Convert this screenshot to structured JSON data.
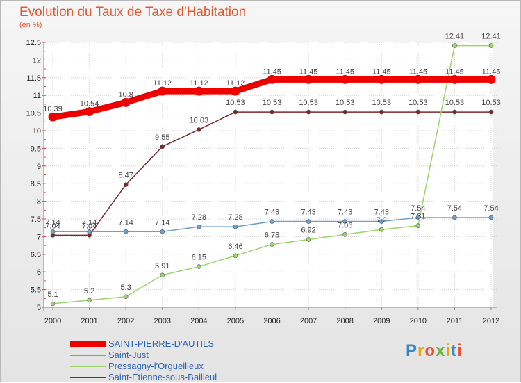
{
  "chart_data": {
    "type": "line",
    "title": "Evolution du Taux de Taxe d'Habitation",
    "ylabel": "(en %)",
    "xlabel": "",
    "x": [
      "2000",
      "2001",
      "2002",
      "2003",
      "2004",
      "2005",
      "2006",
      "2007",
      "2008",
      "2009",
      "2010",
      "2011",
      "2012"
    ],
    "ylim": [
      5,
      12.5
    ],
    "yticks": [
      "5",
      "5.5",
      "6",
      "6.5",
      "7",
      "7.5",
      "8",
      "8.5",
      "9",
      "9.5",
      "10",
      "10.5",
      "11",
      "11.5",
      "12",
      "12.5"
    ],
    "series": [
      {
        "name": "SAINT-PIERRE-D'AUTILS",
        "color": "#ee0000",
        "values": [
          10.39,
          10.54,
          10.8,
          11.12,
          11.12,
          11.12,
          11.45,
          11.45,
          11.45,
          11.45,
          11.45,
          11.45,
          11.45
        ],
        "labels": [
          "10.39",
          "10.54",
          "10.8",
          "11.12",
          "11.12",
          "11.12",
          "11.45",
          "11.45",
          "11.45",
          "11.45",
          "11.45",
          "11.45",
          "11.45"
        ]
      },
      {
        "name": "Saint-Just",
        "color": "#6aa0cf",
        "values": [
          7.14,
          7.14,
          7.14,
          7.14,
          7.28,
          7.28,
          7.43,
          7.43,
          7.43,
          7.43,
          7.54,
          7.54,
          7.54
        ],
        "labels": [
          "7.14",
          "7.14",
          "7.14",
          "7.14",
          "7.28",
          "7.28",
          "7.43",
          "7.43",
          "7.43",
          "7.43",
          "7.54",
          "7.54",
          "7.54"
        ]
      },
      {
        "name": "Pressagny-l'Orgueilleux",
        "color": "#9ad46a",
        "values": [
          5.1,
          5.2,
          5.3,
          5.91,
          6.15,
          6.46,
          6.78,
          6.92,
          7.06,
          7.2,
          7.31,
          12.41,
          12.41
        ],
        "labels": [
          "5.1",
          "5.2",
          "5.3",
          "5.91",
          "6.15",
          "6.46",
          "6.78",
          "6.92",
          "7.06",
          "7.2",
          "7.31",
          "12.41",
          "12.41"
        ]
      },
      {
        "name": "Saint-Étienne-sous-Bailleul",
        "color": "#7a2a2a",
        "values": [
          7.04,
          7.04,
          8.47,
          9.55,
          10.03,
          10.53,
          10.53,
          10.53,
          10.53,
          10.53,
          10.53,
          10.53,
          10.53
        ],
        "labels": [
          "7.04",
          "7.04",
          "8.47",
          "9.55",
          "10.03",
          "10.53",
          "10.53",
          "10.53",
          "10.53",
          "10.53",
          "10.53",
          "10.53",
          "10.53"
        ]
      }
    ]
  },
  "legend": [
    {
      "label": "SAINT-PIERRE-D'AUTILS",
      "color": "#ee0000"
    },
    {
      "label": "Saint-Just",
      "color": "#6aa0cf"
    },
    {
      "label": "Pressagny-l'Orgueilleux",
      "color": "#9ad46a"
    },
    {
      "label": "Saint-Étienne-sous-Bailleul",
      "color": "#7a2a2a"
    }
  ],
  "logo": {
    "letters": [
      "P",
      "r",
      "o",
      "x",
      "i",
      "t",
      "i"
    ],
    "colors": [
      "#3a86c8",
      "#f4a300",
      "#e8543a",
      "#6bb33e",
      "#f4a300",
      "#3a86c8",
      "#e8543a"
    ]
  }
}
